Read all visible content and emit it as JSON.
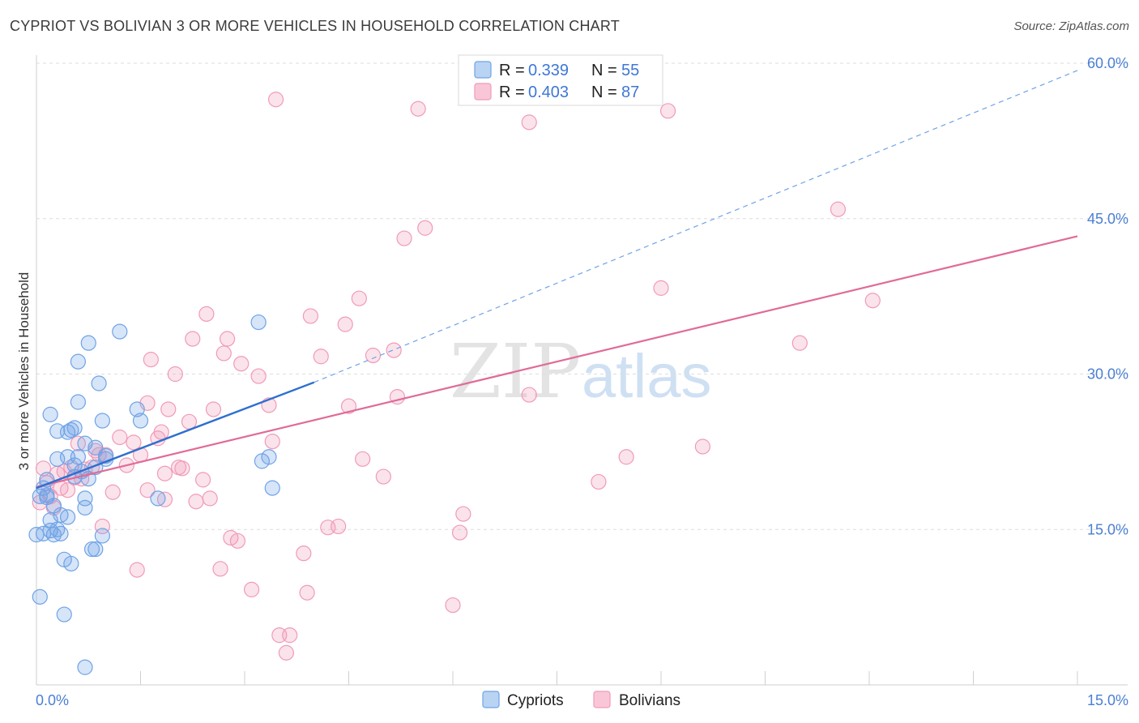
{
  "title": "CYPRIOT VS BOLIVIAN 3 OR MORE VEHICLES IN HOUSEHOLD CORRELATION CHART",
  "source": "Source: ZipAtlas.com",
  "colors": {
    "blue": "#6ea3e6",
    "blue_line": "#2e6fcf",
    "pink": "#f19ab8",
    "pink_line": "#e06b97",
    "axis_text": "#4a7fd4"
  },
  "legend": {
    "rows": [
      {
        "r_label": "R =",
        "r_value": "0.339",
        "n_label": "N =",
        "n_value": "55",
        "series": "Cypriots"
      },
      {
        "r_label": "R =",
        "r_value": "0.403",
        "n_label": "N =",
        "n_value": "87",
        "series": "Bolivians"
      }
    ]
  },
  "bottom_legend": [
    "Cypriots",
    "Bolivians"
  ],
  "watermark": {
    "zip": "ZIP",
    "atlas": "atlas"
  },
  "chart_data": {
    "type": "scatter",
    "title": "CYPRIOT VS BOLIVIAN 3 OR MORE VEHICLES IN HOUSEHOLD CORRELATION CHART",
    "xlabel": "",
    "ylabel": "3 or more Vehicles in Household",
    "xlim": [
      0,
      15
    ],
    "ylim": [
      0,
      60
    ],
    "x_tick_labels": [
      "0.0%",
      "15.0%"
    ],
    "y_ticks": [
      15,
      30,
      45,
      60
    ],
    "y_tick_labels": [
      "15.0%",
      "30.0%",
      "45.0%",
      "60.0%"
    ],
    "series": [
      {
        "name": "Cypriots",
        "r": 0.339,
        "n": 55,
        "trend": {
          "x0": 0.0,
          "y0": 19.0,
          "x1": 4.0,
          "y1": 29.2,
          "dashed_to_x": 15.0,
          "dashed_to_y": 59.3
        },
        "points": [
          [
            0.05,
            18.2
          ],
          [
            0.1,
            14.6
          ],
          [
            0.05,
            8.5
          ],
          [
            0.15,
            19.8
          ],
          [
            0.2,
            15.9
          ],
          [
            0.2,
            14.9
          ],
          [
            0.15,
            18.1
          ],
          [
            0.25,
            17.3
          ],
          [
            0.2,
            26.1
          ],
          [
            0.3,
            24.5
          ],
          [
            0.3,
            21.8
          ],
          [
            0.35,
            16.4
          ],
          [
            0.35,
            14.6
          ],
          [
            0.4,
            12.1
          ],
          [
            0.45,
            22.0
          ],
          [
            0.45,
            16.2
          ],
          [
            0.5,
            11.7
          ],
          [
            0.5,
            24.6
          ],
          [
            0.55,
            20.1
          ],
          [
            0.55,
            21.2
          ],
          [
            0.6,
            27.3
          ],
          [
            0.6,
            22.0
          ],
          [
            0.6,
            31.2
          ],
          [
            0.7,
            23.3
          ],
          [
            0.7,
            18.0
          ],
          [
            0.75,
            33.0
          ],
          [
            0.8,
            13.1
          ],
          [
            0.85,
            22.9
          ],
          [
            0.85,
            21.0
          ],
          [
            0.9,
            29.1
          ],
          [
            0.95,
            25.5
          ],
          [
            1.0,
            22.1
          ],
          [
            1.2,
            34.1
          ],
          [
            1.45,
            26.6
          ],
          [
            1.5,
            25.5
          ],
          [
            1.75,
            18.0
          ],
          [
            3.2,
            35.0
          ],
          [
            3.25,
            21.6
          ],
          [
            3.35,
            22.0
          ],
          [
            3.4,
            19.0
          ],
          [
            0.0,
            14.5
          ],
          [
            0.1,
            19.0
          ],
          [
            0.3,
            15.0
          ],
          [
            0.4,
            6.8
          ],
          [
            0.7,
            1.7
          ],
          [
            0.85,
            13.1
          ],
          [
            0.95,
            14.4
          ],
          [
            1.0,
            21.8
          ],
          [
            0.25,
            14.5
          ],
          [
            0.15,
            18.3
          ],
          [
            0.45,
            24.4
          ],
          [
            0.55,
            24.8
          ],
          [
            0.7,
            17.1
          ],
          [
            0.75,
            19.9
          ],
          [
            0.65,
            20.6
          ]
        ]
      },
      {
        "name": "Bolivians",
        "r": 0.403,
        "n": 87,
        "trend": {
          "x0": 0.0,
          "y0": 19.1,
          "x1": 15.0,
          "y1": 43.3
        },
        "points": [
          [
            0.05,
            17.6
          ],
          [
            0.1,
            20.9
          ],
          [
            0.15,
            19.5
          ],
          [
            0.2,
            18.2
          ],
          [
            0.25,
            17.1
          ],
          [
            0.3,
            20.4
          ],
          [
            0.35,
            19.0
          ],
          [
            0.4,
            20.6
          ],
          [
            0.45,
            18.8
          ],
          [
            0.5,
            21.0
          ],
          [
            0.55,
            20.0
          ],
          [
            0.6,
            23.3
          ],
          [
            0.65,
            19.9
          ],
          [
            0.7,
            20.8
          ],
          [
            0.8,
            21.0
          ],
          [
            0.85,
            22.6
          ],
          [
            0.9,
            22.2
          ],
          [
            1.0,
            22.2
          ],
          [
            1.1,
            18.6
          ],
          [
            1.2,
            23.9
          ],
          [
            1.3,
            21.2
          ],
          [
            1.4,
            23.4
          ],
          [
            1.5,
            22.2
          ],
          [
            1.6,
            18.8
          ],
          [
            1.6,
            27.2
          ],
          [
            1.65,
            31.4
          ],
          [
            1.75,
            23.8
          ],
          [
            1.8,
            24.4
          ],
          [
            1.85,
            20.4
          ],
          [
            1.9,
            26.6
          ],
          [
            2.0,
            30.0
          ],
          [
            2.05,
            21.0
          ],
          [
            2.1,
            20.9
          ],
          [
            2.2,
            25.4
          ],
          [
            2.25,
            33.4
          ],
          [
            2.3,
            17.7
          ],
          [
            2.4,
            19.8
          ],
          [
            2.45,
            35.8
          ],
          [
            2.5,
            18.0
          ],
          [
            2.55,
            26.6
          ],
          [
            2.65,
            11.2
          ],
          [
            2.7,
            32.0
          ],
          [
            2.75,
            33.4
          ],
          [
            2.8,
            14.2
          ],
          [
            2.9,
            13.9
          ],
          [
            2.95,
            31.0
          ],
          [
            3.1,
            9.2
          ],
          [
            3.2,
            29.8
          ],
          [
            3.35,
            27.0
          ],
          [
            3.4,
            23.5
          ],
          [
            3.45,
            56.5
          ],
          [
            3.5,
            4.8
          ],
          [
            3.6,
            3.1
          ],
          [
            3.65,
            4.8
          ],
          [
            3.85,
            12.7
          ],
          [
            3.9,
            8.9
          ],
          [
            3.95,
            35.6
          ],
          [
            4.1,
            31.7
          ],
          [
            4.2,
            15.2
          ],
          [
            4.35,
            15.3
          ],
          [
            4.45,
            34.8
          ],
          [
            4.5,
            26.9
          ],
          [
            4.65,
            37.3
          ],
          [
            4.7,
            21.8
          ],
          [
            4.85,
            31.8
          ],
          [
            5.0,
            20.1
          ],
          [
            5.15,
            32.3
          ],
          [
            5.2,
            27.8
          ],
          [
            5.3,
            43.1
          ],
          [
            5.5,
            55.6
          ],
          [
            5.6,
            44.1
          ],
          [
            6.0,
            7.7
          ],
          [
            6.1,
            14.7
          ],
          [
            6.15,
            16.5
          ],
          [
            7.1,
            54.3
          ],
          [
            7.1,
            28.0
          ],
          [
            8.1,
            19.6
          ],
          [
            8.5,
            22.0
          ],
          [
            9.0,
            38.3
          ],
          [
            9.1,
            55.4
          ],
          [
            9.6,
            23.0
          ],
          [
            11.0,
            33.0
          ],
          [
            11.55,
            45.9
          ],
          [
            12.05,
            37.1
          ],
          [
            1.45,
            11.1
          ],
          [
            0.95,
            15.3
          ],
          [
            1.85,
            17.9
          ]
        ]
      }
    ]
  }
}
